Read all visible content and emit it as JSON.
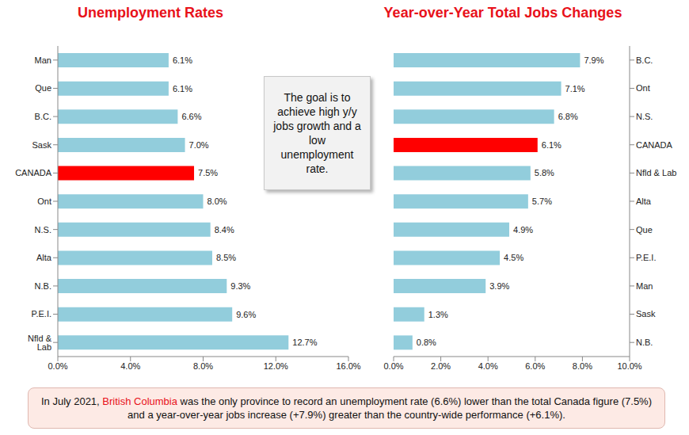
{
  "chart_data": [
    {
      "type": "bar",
      "title": "Unemployment Rates",
      "orientation": "horizontal",
      "data_labels": true,
      "grid": false,
      "categories": [
        "Man",
        "Que",
        "B.C.",
        "Sask",
        "CANADA",
        "Ont",
        "N.S.",
        "Alta",
        "N.B.",
        "P.E.I.",
        "Nfld & Lab"
      ],
      "values": [
        6.1,
        6.1,
        6.6,
        7.0,
        7.5,
        8.0,
        8.4,
        8.5,
        9.3,
        9.6,
        12.7
      ],
      "value_labels": [
        "6.1%",
        "6.1%",
        "6.6%",
        "7.0%",
        "7.5%",
        "8.0%",
        "8.4%",
        "8.5%",
        "9.3%",
        "9.6%",
        "12.7%"
      ],
      "colors": [
        "#92cddc",
        "#92cddc",
        "#92cddc",
        "#92cddc",
        "#ff0000",
        "#92cddc",
        "#92cddc",
        "#92cddc",
        "#92cddc",
        "#92cddc",
        "#92cddc"
      ],
      "xlim": [
        0,
        16
      ],
      "xticks": [
        {
          "value": 0,
          "label": "0.0%"
        },
        {
          "value": 4,
          "label": "4.0%"
        },
        {
          "value": 8,
          "label": "8.0%"
        },
        {
          "value": 12,
          "label": "12.0%"
        },
        {
          "value": 16,
          "label": "16.0%"
        }
      ]
    },
    {
      "type": "bar",
      "title": "Year-over-Year Total Jobs Changes",
      "orientation": "horizontal",
      "data_labels": true,
      "grid": false,
      "categories": [
        "B.C.",
        "Ont",
        "N.S.",
        "CANADA",
        "Nfld & Lab",
        "Alta",
        "Que",
        "P.E.I.",
        "Man",
        "Sask",
        "N.B."
      ],
      "values": [
        7.9,
        7.1,
        6.8,
        6.1,
        5.8,
        5.7,
        4.9,
        4.5,
        3.9,
        1.3,
        0.8
      ],
      "value_labels": [
        "7.9%",
        "7.1%",
        "6.8%",
        "6.1%",
        "5.8%",
        "5.7%",
        "4.9%",
        "4.5%",
        "3.9%",
        "1.3%",
        "0.8%"
      ],
      "colors": [
        "#92cddc",
        "#92cddc",
        "#92cddc",
        "#ff0000",
        "#92cddc",
        "#92cddc",
        "#92cddc",
        "#92cddc",
        "#92cddc",
        "#92cddc",
        "#92cddc"
      ],
      "xlim": [
        0,
        10
      ],
      "xticks": [
        {
          "value": 0,
          "label": "0.0%"
        },
        {
          "value": 2,
          "label": "2.0%"
        },
        {
          "value": 4,
          "label": "4.0%"
        },
        {
          "value": 6,
          "label": "6.0%"
        },
        {
          "value": 8,
          "label": "8.0%"
        },
        {
          "value": 10,
          "label": "10.0%"
        }
      ]
    }
  ],
  "annotation": "The goal is to achieve high y/y jobs growth and a low unemployment rate.",
  "footnote": "In July 2021, British Columbia was the only province to record an unemployment rate (6.6%) lower than the total Canada figure (7.5%) and a year-over-year jobs increase (+7.9%) greater than the country-wide performance (+6.1%).",
  "footnote_highlight": "British Columbia"
}
